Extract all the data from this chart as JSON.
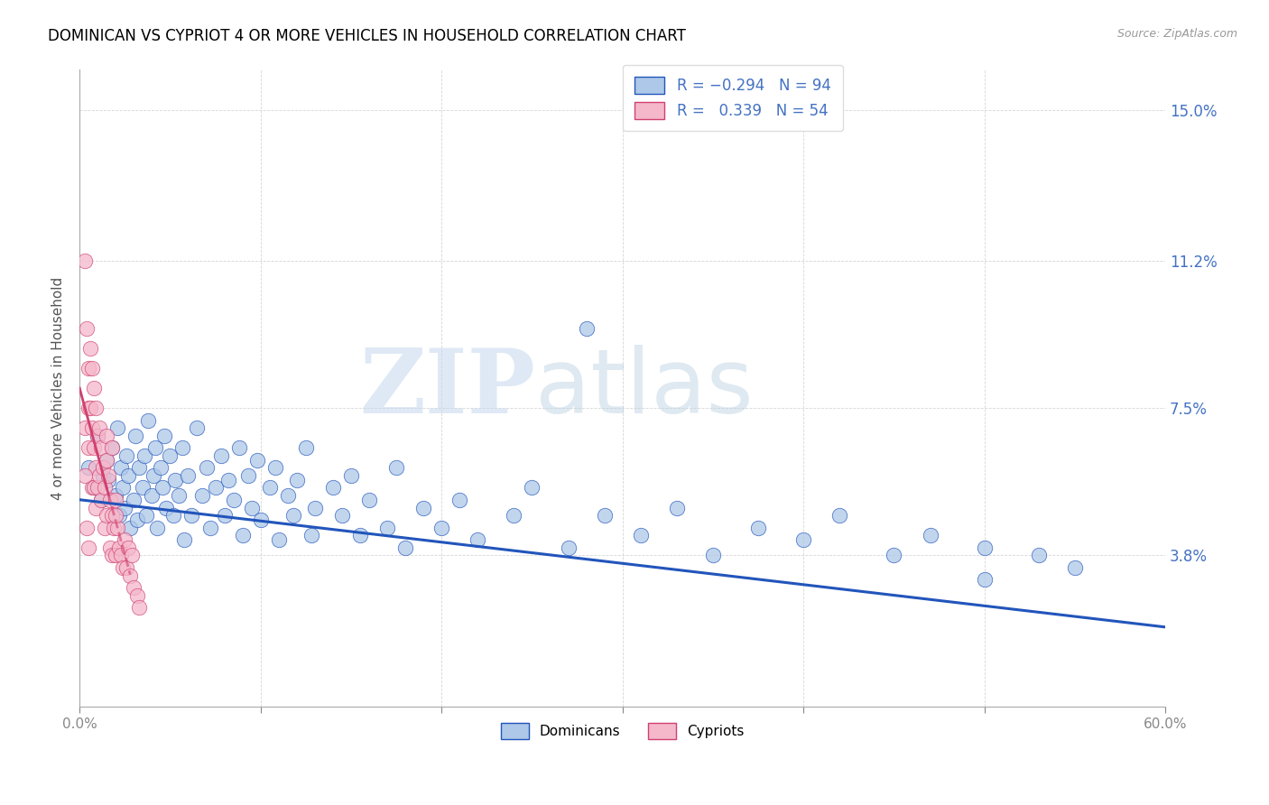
{
  "title": "DOMINICAN VS CYPRIOT 4 OR MORE VEHICLES IN HOUSEHOLD CORRELATION CHART",
  "source": "Source: ZipAtlas.com",
  "ylabel": "4 or more Vehicles in Household",
  "xlim": [
    0.0,
    0.6
  ],
  "ylim": [
    0.0,
    0.16
  ],
  "ytick_right_labels": [
    "3.8%",
    "7.5%",
    "11.2%",
    "15.0%"
  ],
  "ytick_right_values": [
    0.038,
    0.075,
    0.112,
    0.15
  ],
  "dominican_color": "#adc8e8",
  "cypriot_color": "#f5b8cb",
  "trend_dominican_color": "#2255bb",
  "trend_cypriot_color": "#d04070",
  "watermark_zip": "ZIP",
  "watermark_atlas": "atlas",
  "dominican_x": [
    0.005,
    0.008,
    0.01,
    0.012,
    0.013,
    0.015,
    0.016,
    0.018,
    0.02,
    0.021,
    0.022,
    0.023,
    0.024,
    0.025,
    0.026,
    0.027,
    0.028,
    0.03,
    0.031,
    0.032,
    0.033,
    0.035,
    0.036,
    0.037,
    0.038,
    0.04,
    0.041,
    0.042,
    0.043,
    0.045,
    0.046,
    0.047,
    0.048,
    0.05,
    0.052,
    0.053,
    0.055,
    0.057,
    0.058,
    0.06,
    0.062,
    0.065,
    0.068,
    0.07,
    0.072,
    0.075,
    0.078,
    0.08,
    0.082,
    0.085,
    0.088,
    0.09,
    0.093,
    0.095,
    0.098,
    0.1,
    0.105,
    0.108,
    0.11,
    0.115,
    0.118,
    0.12,
    0.125,
    0.128,
    0.13,
    0.14,
    0.145,
    0.15,
    0.155,
    0.16,
    0.17,
    0.175,
    0.18,
    0.19,
    0.2,
    0.21,
    0.22,
    0.24,
    0.25,
    0.27,
    0.29,
    0.31,
    0.33,
    0.35,
    0.375,
    0.4,
    0.42,
    0.45,
    0.47,
    0.5,
    0.53,
    0.55,
    0.28,
    0.5
  ],
  "dominican_y": [
    0.06,
    0.055,
    0.068,
    0.052,
    0.058,
    0.062,
    0.057,
    0.065,
    0.053,
    0.07,
    0.048,
    0.06,
    0.055,
    0.05,
    0.063,
    0.058,
    0.045,
    0.052,
    0.068,
    0.047,
    0.06,
    0.055,
    0.063,
    0.048,
    0.072,
    0.053,
    0.058,
    0.065,
    0.045,
    0.06,
    0.055,
    0.068,
    0.05,
    0.063,
    0.048,
    0.057,
    0.053,
    0.065,
    0.042,
    0.058,
    0.048,
    0.07,
    0.053,
    0.06,
    0.045,
    0.055,
    0.063,
    0.048,
    0.057,
    0.052,
    0.065,
    0.043,
    0.058,
    0.05,
    0.062,
    0.047,
    0.055,
    0.06,
    0.042,
    0.053,
    0.048,
    0.057,
    0.065,
    0.043,
    0.05,
    0.055,
    0.048,
    0.058,
    0.043,
    0.052,
    0.045,
    0.06,
    0.04,
    0.05,
    0.045,
    0.052,
    0.042,
    0.048,
    0.055,
    0.04,
    0.048,
    0.043,
    0.05,
    0.038,
    0.045,
    0.042,
    0.048,
    0.038,
    0.043,
    0.04,
    0.038,
    0.035,
    0.095,
    0.032
  ],
  "cypriot_x": [
    0.003,
    0.003,
    0.004,
    0.005,
    0.005,
    0.005,
    0.006,
    0.006,
    0.007,
    0.007,
    0.007,
    0.008,
    0.008,
    0.008,
    0.009,
    0.009,
    0.009,
    0.01,
    0.01,
    0.011,
    0.011,
    0.012,
    0.012,
    0.013,
    0.014,
    0.014,
    0.015,
    0.015,
    0.016,
    0.017,
    0.017,
    0.018,
    0.018,
    0.019,
    0.02,
    0.02,
    0.021,
    0.022,
    0.023,
    0.024,
    0.025,
    0.026,
    0.027,
    0.028,
    0.029,
    0.03,
    0.032,
    0.033,
    0.015,
    0.02,
    0.003,
    0.004,
    0.005,
    0.018
  ],
  "cypriot_y": [
    0.112,
    0.07,
    0.095,
    0.085,
    0.075,
    0.065,
    0.09,
    0.075,
    0.085,
    0.07,
    0.055,
    0.08,
    0.065,
    0.055,
    0.075,
    0.06,
    0.05,
    0.068,
    0.055,
    0.07,
    0.058,
    0.065,
    0.052,
    0.06,
    0.055,
    0.045,
    0.062,
    0.048,
    0.058,
    0.052,
    0.04,
    0.048,
    0.038,
    0.045,
    0.052,
    0.038,
    0.045,
    0.04,
    0.038,
    0.035,
    0.042,
    0.035,
    0.04,
    0.033,
    0.038,
    0.03,
    0.028,
    0.025,
    0.068,
    0.048,
    0.058,
    0.045,
    0.04,
    0.065
  ]
}
